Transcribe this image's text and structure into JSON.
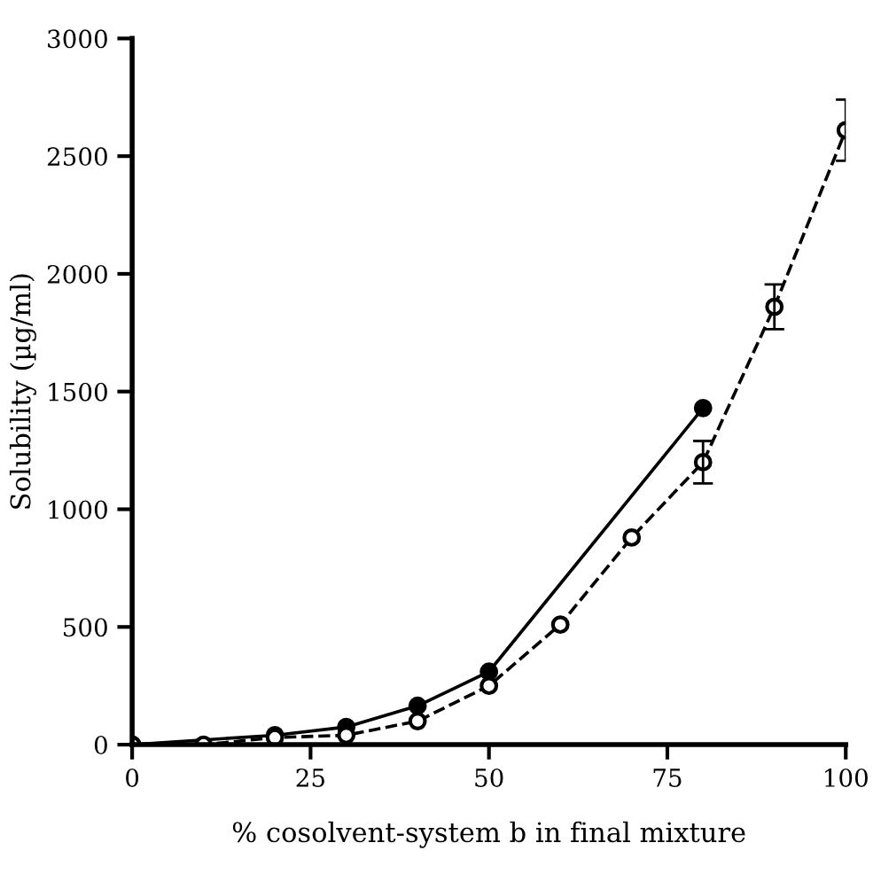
{
  "chart_data": {
    "type": "line",
    "xlabel": "% cosolvent-system b in final mixture",
    "ylabel": "Solubility (µg/ml)",
    "xlim": [
      0,
      100
    ],
    "ylim": [
      0,
      3000
    ],
    "xticks": [
      0,
      25,
      50,
      75,
      100
    ],
    "yticks": [
      0,
      500,
      1000,
      1500,
      2000,
      2500,
      3000
    ],
    "grid": false,
    "legend": false,
    "series": [
      {
        "color": "#000000",
        "marker": "circle",
        "line_style": "solid",
        "x": [
          0,
          20,
          30,
          40,
          50,
          80
        ],
        "values": [
          0,
          40,
          75,
          165,
          310,
          1430
        ]
      },
      {
        "color": "#000000",
        "marker": "circle",
        "line_style": "dashed",
        "x": [
          0,
          10,
          20,
          30,
          40,
          50,
          60,
          70,
          80,
          90,
          100
        ],
        "values": [
          0,
          0,
          30,
          40,
          100,
          250,
          510,
          880,
          1200,
          1860,
          2610
        ],
        "errors": [
          null,
          null,
          null,
          null,
          null,
          null,
          null,
          null,
          90,
          95,
          130
        ]
      }
    ]
  }
}
